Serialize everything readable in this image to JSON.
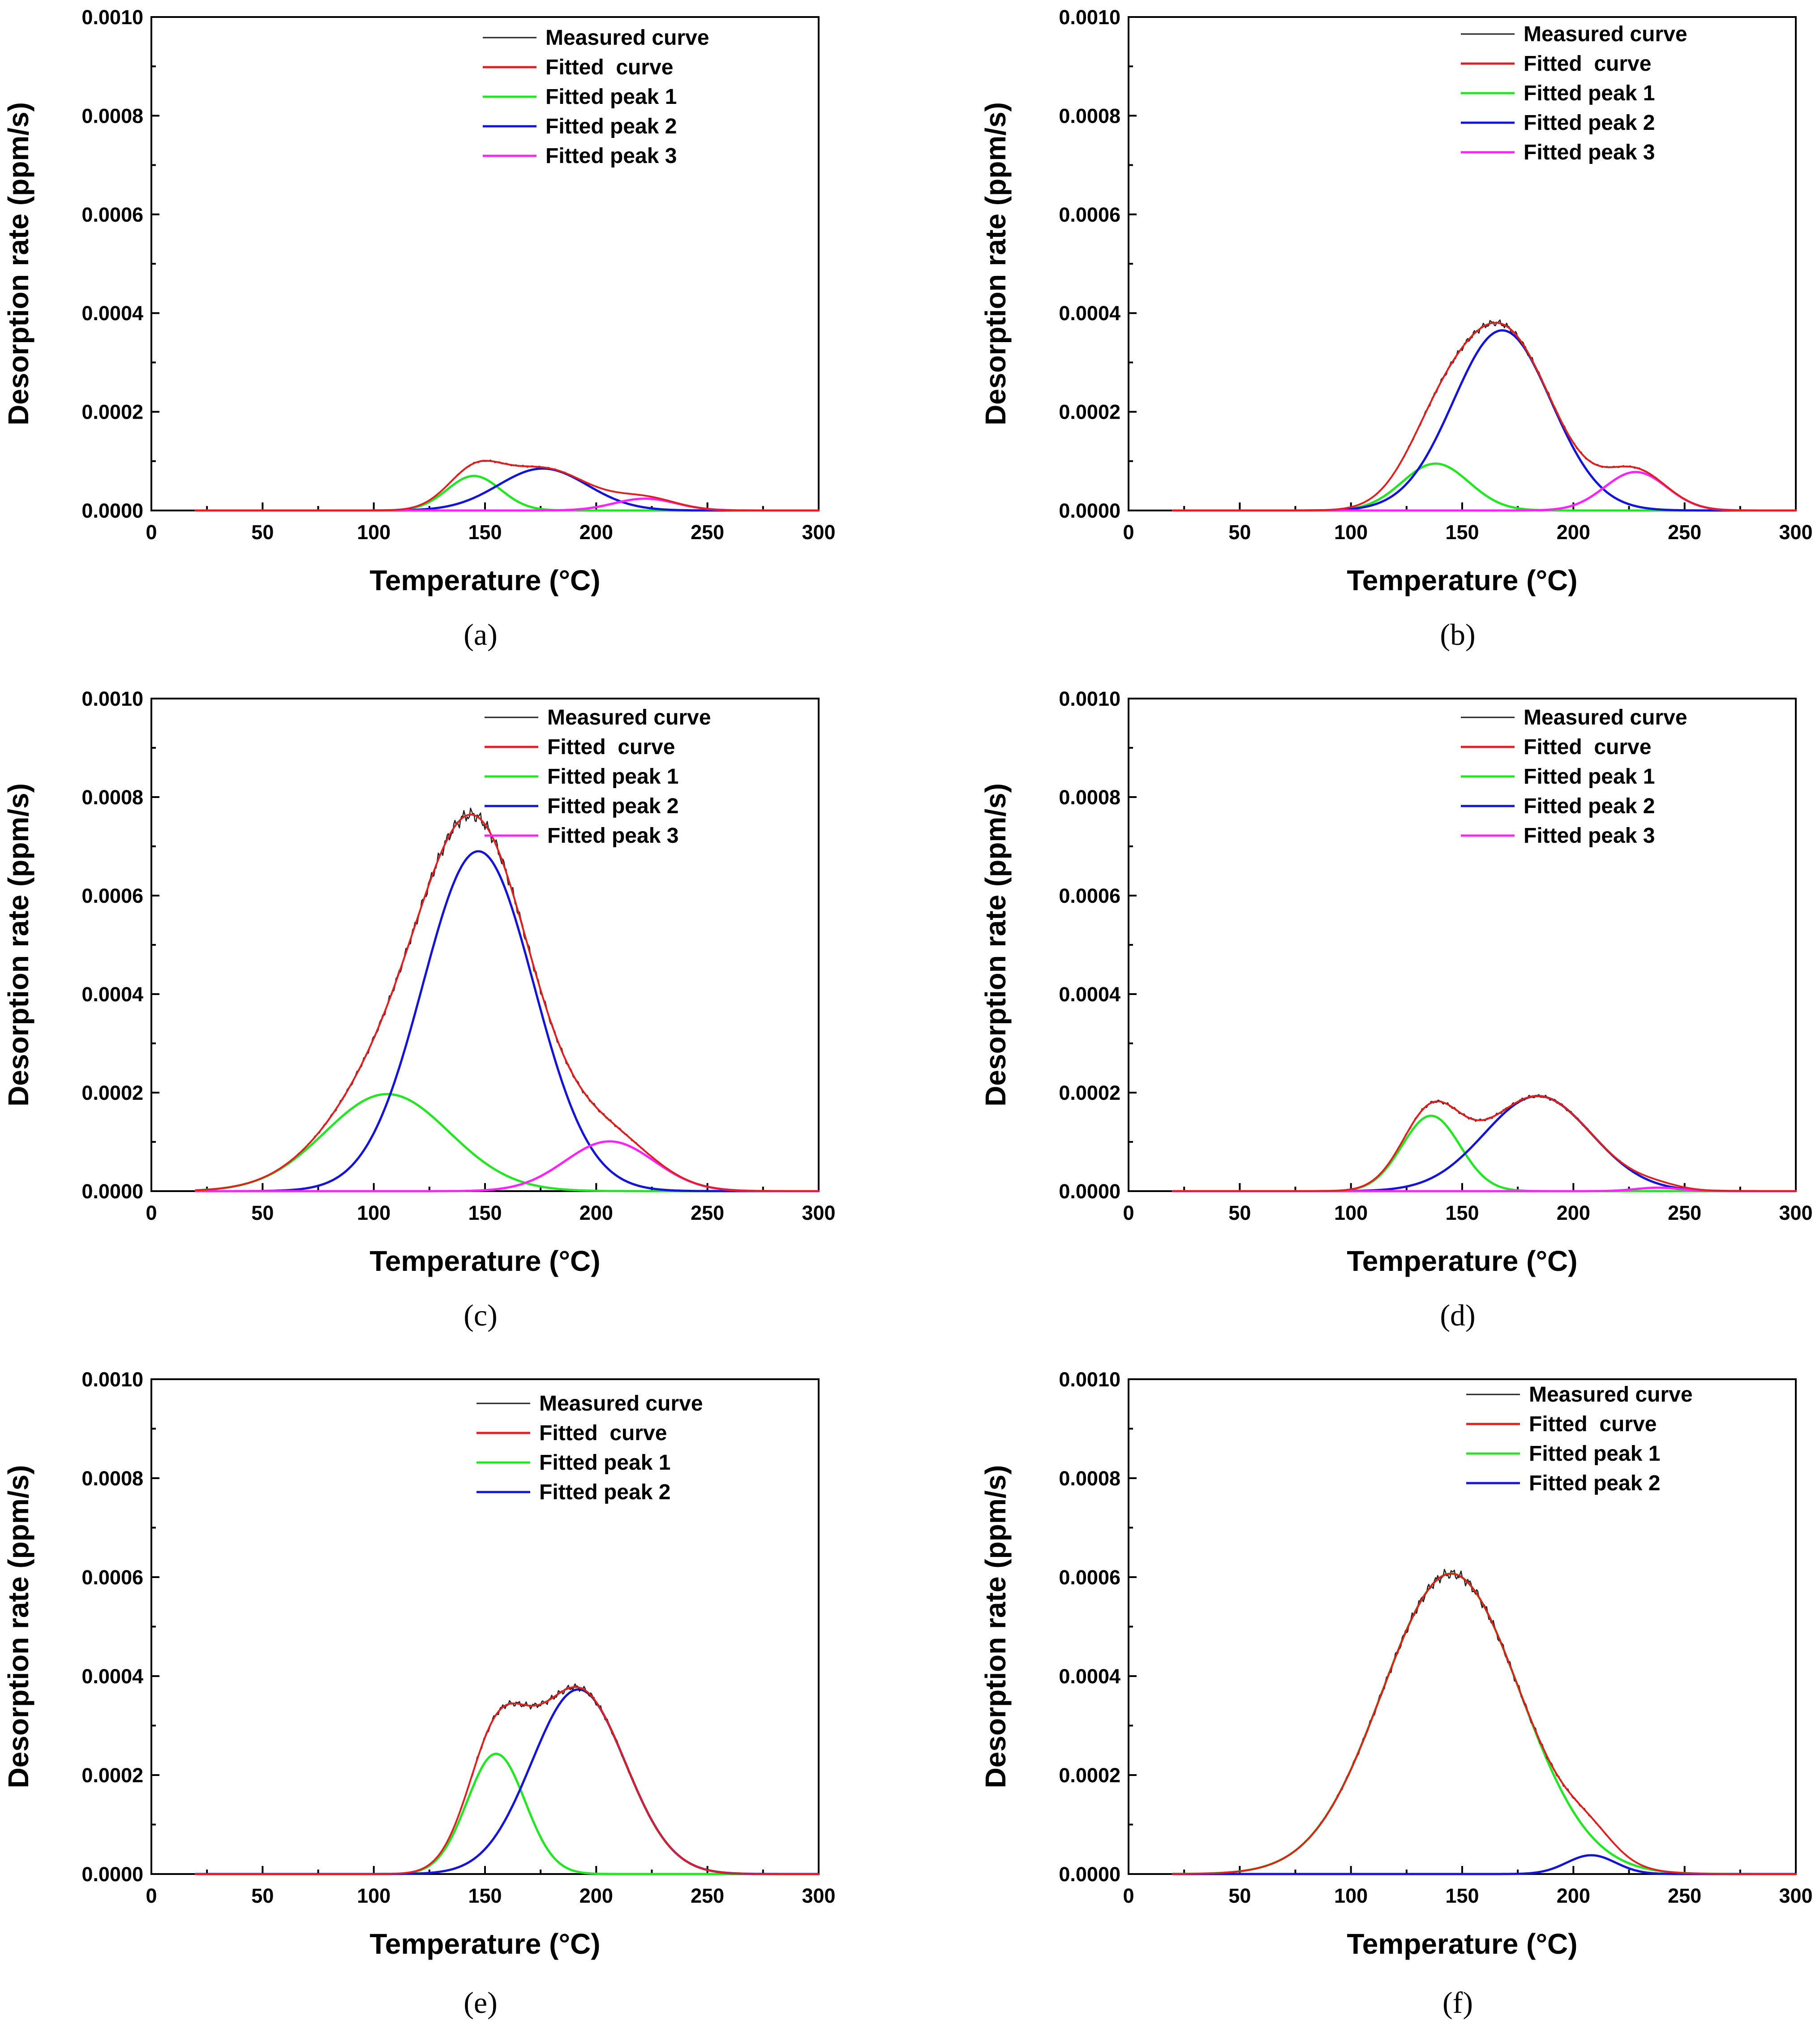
{
  "chart_data": [
    {
      "panel": "(a)",
      "type": "line",
      "xlabel": "Temperature (°C)",
      "ylabel": "Desorption rate (ppm/s)",
      "xlim": [
        0,
        300
      ],
      "ylim": [
        0,
        0.001
      ],
      "xticks": [
        "0",
        "50",
        "100",
        "150",
        "200",
        "250",
        "300"
      ],
      "yticks": [
        "0.0000",
        "0.0002",
        "0.0004",
        "0.0006",
        "0.0008",
        "0.0010"
      ],
      "legend_position": "top-right",
      "peaks": [
        {
          "name": "Fitted peak 1",
          "color": "#22e622",
          "center": 145,
          "height": 7e-05,
          "sigma": 12
        },
        {
          "name": "Fitted peak 2",
          "color": "#1414d8",
          "center": 176,
          "height": 8.5e-05,
          "sigma": 20
        },
        {
          "name": "Fitted peak 3",
          "color": "#ff22ff",
          "center": 222,
          "height": 2.4e-05,
          "sigma": 14
        }
      ],
      "series": [
        {
          "name": "Measured curve",
          "color": "#202020"
        },
        {
          "name": "Fitted  curve",
          "color": "#e02020"
        },
        {
          "name": "Fitted peak 1",
          "color": "#22e622"
        },
        {
          "name": "Fitted peak 2",
          "color": "#1414d8"
        },
        {
          "name": "Fitted peak 3",
          "color": "#ff22ff"
        }
      ]
    },
    {
      "panel": "(b)",
      "type": "line",
      "xlabel": "Temperature (°C)",
      "ylabel": "Desorption rate (ppm/s)",
      "xlim": [
        0,
        300
      ],
      "ylim": [
        0,
        0.001
      ],
      "xticks": [
        "0",
        "50",
        "100",
        "150",
        "200",
        "250",
        "300"
      ],
      "yticks": [
        "0.0000",
        "0.0002",
        "0.0004",
        "0.0006",
        "0.0008",
        "0.0010"
      ],
      "legend_position": "top-right",
      "peaks": [
        {
          "name": "Fitted peak 1",
          "color": "#22e622",
          "center": 138,
          "height": 9.5e-05,
          "sigma": 15
        },
        {
          "name": "Fitted peak 2",
          "color": "#1414d8",
          "center": 168,
          "height": 0.000365,
          "sigma": 22
        },
        {
          "name": "Fitted peak 3",
          "color": "#ff22ff",
          "center": 228,
          "height": 7.8e-05,
          "sigma": 14
        }
      ],
      "series": [
        {
          "name": "Measured curve",
          "color": "#202020"
        },
        {
          "name": "Fitted  curve",
          "color": "#e02020"
        },
        {
          "name": "Fitted peak 1",
          "color": "#22e622"
        },
        {
          "name": "Fitted peak 2",
          "color": "#1414d8"
        },
        {
          "name": "Fitted peak 3",
          "color": "#ff22ff"
        }
      ]
    },
    {
      "panel": "(c)",
      "type": "line",
      "xlabel": "Temperature (°C)",
      "ylabel": "Desorption rate (ppm/s)",
      "xlim": [
        0,
        300
      ],
      "ylim": [
        0,
        0.001
      ],
      "xticks": [
        "0",
        "50",
        "100",
        "150",
        "200",
        "250",
        "300"
      ],
      "yticks": [
        "0.0000",
        "0.0002",
        "0.0004",
        "0.0006",
        "0.0008",
        "0.0010"
      ],
      "legend_position": "top-right",
      "peaks": [
        {
          "name": "Fitted peak 1",
          "color": "#22e622",
          "center": 106,
          "height": 0.000197,
          "sigma": 28
        },
        {
          "name": "Fitted peak 2",
          "color": "#1414d8",
          "center": 147,
          "height": 0.00069,
          "sigma": 25
        },
        {
          "name": "Fitted peak 3",
          "color": "#ff22ff",
          "center": 206,
          "height": 0.000101,
          "sigma": 20
        }
      ],
      "series": [
        {
          "name": "Measured curve",
          "color": "#202020"
        },
        {
          "name": "Fitted  curve",
          "color": "#e02020"
        },
        {
          "name": "Fitted peak 1",
          "color": "#22e622"
        },
        {
          "name": "Fitted peak 2",
          "color": "#1414d8"
        },
        {
          "name": "Fitted peak 3",
          "color": "#ff22ff"
        }
      ]
    },
    {
      "panel": "(d)",
      "type": "line",
      "xlabel": "Temperature (°C)",
      "ylabel": "Desorption rate (ppm/s)",
      "xlim": [
        0,
        300
      ],
      "ylim": [
        0,
        0.001
      ],
      "xticks": [
        "0",
        "50",
        "100",
        "150",
        "200",
        "250",
        "300"
      ],
      "yticks": [
        "0.0000",
        "0.0002",
        "0.0004",
        "0.0006",
        "0.0008",
        "0.0010"
      ],
      "legend_position": "top-right",
      "peaks": [
        {
          "name": "Fitted peak 1",
          "color": "#22e622",
          "center": 136,
          "height": 0.000153,
          "sigma": 13
        },
        {
          "name": "Fitted peak 2",
          "color": "#1414d8",
          "center": 184,
          "height": 0.000193,
          "sigma": 24
        },
        {
          "name": "Fitted peak 3",
          "color": "#ff22ff",
          "center": 238,
          "height": 7e-06,
          "sigma": 10
        }
      ],
      "series": [
        {
          "name": "Measured curve",
          "color": "#202020"
        },
        {
          "name": "Fitted  curve",
          "color": "#e02020"
        },
        {
          "name": "Fitted peak 1",
          "color": "#22e622"
        },
        {
          "name": "Fitted peak 2",
          "color": "#1414d8"
        },
        {
          "name": "Fitted peak 3",
          "color": "#ff22ff"
        }
      ]
    },
    {
      "panel": "(e)",
      "type": "line",
      "xlabel": "Temperature (°C)",
      "ylabel": "Desorption rate (ppm/s)",
      "xlim": [
        0,
        300
      ],
      "ylim": [
        0,
        0.001
      ],
      "xticks": [
        "0",
        "50",
        "100",
        "150",
        "200",
        "250",
        "300"
      ],
      "yticks": [
        "0.0000",
        "0.0002",
        "0.0004",
        "0.0006",
        "0.0008",
        "0.0010"
      ],
      "legend_position": "top-right",
      "peaks": [
        {
          "name": "Fitted peak 1",
          "color": "#22e622",
          "center": 155,
          "height": 0.000243,
          "sigma": 13
        },
        {
          "name": "Fitted peak 2",
          "color": "#1414d8",
          "center": 192,
          "height": 0.000373,
          "sigma": 21
        }
      ],
      "series": [
        {
          "name": "Measured curve",
          "color": "#202020"
        },
        {
          "name": "Fitted  curve",
          "color": "#e02020"
        },
        {
          "name": "Fitted peak 1",
          "color": "#22e622"
        },
        {
          "name": "Fitted peak 2",
          "color": "#1414d8"
        }
      ]
    },
    {
      "panel": "(f)",
      "type": "line",
      "xlabel": "Temperature (°C)",
      "ylabel": "Desorption rate (ppm/s)",
      "xlim": [
        0,
        300
      ],
      "ylim": [
        0,
        0.001
      ],
      "xticks": [
        "0",
        "50",
        "100",
        "150",
        "200",
        "250",
        "300"
      ],
      "yticks": [
        "0.0000",
        "0.0002",
        "0.0004",
        "0.0006",
        "0.0008",
        "0.0010"
      ],
      "legend_position": "top-right",
      "peaks": [
        {
          "name": "Fitted peak 1",
          "color": "#22e622",
          "center": 145,
          "height": 0.000607,
          "sigma": 31
        },
        {
          "name": "Fitted peak 2",
          "color": "#1414d8",
          "center": 208,
          "height": 3.8e-05,
          "sigma": 11
        }
      ],
      "series": [
        {
          "name": "Measured curve",
          "color": "#202020"
        },
        {
          "name": "Fitted  curve",
          "color": "#e02020"
        },
        {
          "name": "Fitted peak 1",
          "color": "#22e622"
        },
        {
          "name": "Fitted peak 2",
          "color": "#1414d8"
        }
      ]
    }
  ]
}
